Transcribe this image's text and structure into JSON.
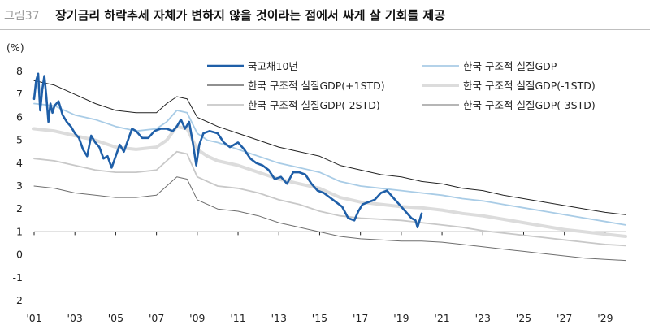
{
  "header": {
    "figure_label": "그림37",
    "title": "장기금리 하락추세 자체가 변하지 않을 것이라는 점에서 싸게 살 기회를 제공"
  },
  "chart_data": {
    "type": "line",
    "unit_label": "(%)",
    "ylim": [
      -2,
      8
    ],
    "yticks": [
      "8",
      "7",
      "6",
      "5",
      "4",
      "3",
      "2",
      "1",
      "0",
      "-1",
      "-2"
    ],
    "xlim": [
      2001,
      2030
    ],
    "xticks": [
      "'01",
      "'03",
      "'05",
      "'07",
      "'09",
      "'11",
      "'13",
      "'15",
      "'17",
      "'19",
      "'21",
      "'23",
      "'25",
      "'27",
      "'29"
    ],
    "grid": false,
    "legend_position": "top",
    "series": [
      {
        "name": "국고채10년",
        "color": "#1f5fa8",
        "style": "thick",
        "x": [
          2001.0,
          2001.1,
          2001.2,
          2001.3,
          2001.4,
          2001.5,
          2001.6,
          2001.7,
          2001.8,
          2001.9,
          2002.0,
          2002.2,
          2002.4,
          2002.6,
          2002.8,
          2003.0,
          2003.2,
          2003.4,
          2003.6,
          2003.8,
          2004.0,
          2004.2,
          2004.4,
          2004.6,
          2004.8,
          2005.0,
          2005.2,
          2005.4,
          2005.6,
          2005.8,
          2006.0,
          2006.3,
          2006.6,
          2006.9,
          2007.2,
          2007.5,
          2007.8,
          2008.0,
          2008.2,
          2008.4,
          2008.6,
          2008.8,
          2008.95,
          2009.1,
          2009.3,
          2009.6,
          2010.0,
          2010.3,
          2010.6,
          2011.0,
          2011.3,
          2011.6,
          2011.9,
          2012.2,
          2012.5,
          2012.8,
          2013.1,
          2013.4,
          2013.7,
          2014.0,
          2014.3,
          2014.6,
          2014.9,
          2015.2,
          2015.5,
          2015.8,
          2016.1,
          2016.4,
          2016.7,
          2016.9,
          2017.1,
          2017.4,
          2017.7,
          2018.0,
          2018.3,
          2018.6,
          2018.9,
          2019.2,
          2019.5,
          2019.7,
          2019.8,
          2019.9,
          2020.0
        ],
        "values": [
          6.8,
          7.6,
          7.9,
          6.3,
          7.2,
          7.8,
          6.9,
          5.8,
          6.6,
          6.2,
          6.5,
          6.7,
          6.1,
          5.8,
          5.6,
          5.3,
          5.1,
          4.6,
          4.3,
          5.2,
          4.9,
          4.7,
          4.2,
          4.3,
          3.8,
          4.3,
          4.8,
          4.5,
          5.0,
          5.5,
          5.4,
          5.1,
          5.1,
          5.4,
          5.5,
          5.5,
          5.4,
          5.6,
          5.9,
          5.5,
          5.8,
          4.8,
          3.9,
          4.8,
          5.3,
          5.4,
          5.3,
          4.9,
          4.7,
          4.9,
          4.6,
          4.2,
          4.0,
          3.9,
          3.7,
          3.3,
          3.4,
          3.1,
          3.6,
          3.6,
          3.5,
          3.1,
          2.8,
          2.7,
          2.5,
          2.3,
          2.1,
          1.6,
          1.5,
          1.9,
          2.2,
          2.3,
          2.4,
          2.7,
          2.8,
          2.5,
          2.2,
          1.9,
          1.6,
          1.5,
          1.2,
          1.5,
          1.8
        ]
      },
      {
        "name": "한국 구조적 실질GDP",
        "color": "#a9cce6",
        "style": "normal",
        "x": [
          2001,
          2002,
          2003,
          2004,
          2005,
          2006,
          2007,
          2007.5,
          2008,
          2008.5,
          2009,
          2009.5,
          2010,
          2011,
          2012,
          2013,
          2014,
          2015,
          2016,
          2017,
          2018,
          2019,
          2020,
          2021,
          2022,
          2023,
          2024,
          2025,
          2026,
          2027,
          2028,
          2029,
          2030
        ],
        "values": [
          6.6,
          6.5,
          6.1,
          5.9,
          5.6,
          5.4,
          5.5,
          5.8,
          6.3,
          6.2,
          5.3,
          5.0,
          4.9,
          4.6,
          4.3,
          4.0,
          3.8,
          3.6,
          3.2,
          3.0,
          2.9,
          2.8,
          2.7,
          2.6,
          2.45,
          2.35,
          2.2,
          2.05,
          1.9,
          1.75,
          1.6,
          1.45,
          1.3
        ]
      },
      {
        "name": "한국 구조적 실질GDP(+1STD)",
        "color": "#222222",
        "style": "thin",
        "x": [
          2001,
          2002,
          2003,
          2004,
          2005,
          2006,
          2007,
          2007.5,
          2008,
          2008.5,
          2009,
          2009.5,
          2010,
          2011,
          2012,
          2013,
          2014,
          2015,
          2016,
          2017,
          2018,
          2019,
          2020,
          2021,
          2022,
          2023,
          2024,
          2025,
          2026,
          2027,
          2028,
          2029,
          2030
        ],
        "values": [
          7.6,
          7.4,
          7.0,
          6.6,
          6.3,
          6.2,
          6.2,
          6.6,
          6.9,
          6.8,
          6.0,
          5.8,
          5.6,
          5.3,
          5.0,
          4.7,
          4.5,
          4.3,
          3.9,
          3.7,
          3.5,
          3.4,
          3.2,
          3.1,
          2.9,
          2.8,
          2.6,
          2.45,
          2.3,
          2.15,
          2.0,
          1.85,
          1.75
        ]
      },
      {
        "name": "한국 구조적 실질GDP(-1STD)",
        "color": "#dcdcdc",
        "style": "thick",
        "x": [
          2001,
          2002,
          2003,
          2004,
          2005,
          2006,
          2007,
          2007.5,
          2008,
          2008.5,
          2009,
          2009.5,
          2010,
          2011,
          2012,
          2013,
          2014,
          2015,
          2016,
          2017,
          2018,
          2019,
          2020,
          2021,
          2022,
          2023,
          2024,
          2025,
          2026,
          2027,
          2028,
          2029,
          2030
        ],
        "values": [
          5.5,
          5.4,
          5.2,
          5.0,
          4.7,
          4.6,
          4.7,
          5.0,
          5.6,
          5.5,
          4.6,
          4.3,
          4.1,
          3.9,
          3.6,
          3.3,
          3.1,
          2.9,
          2.5,
          2.3,
          2.2,
          2.1,
          2.05,
          1.95,
          1.8,
          1.7,
          1.55,
          1.4,
          1.25,
          1.1,
          1.0,
          0.9,
          0.8
        ]
      },
      {
        "name": "한국 구조적 실질GDP(-2STD)",
        "color": "#c8c8c8",
        "style": "normal",
        "x": [
          2001,
          2002,
          2003,
          2004,
          2005,
          2006,
          2007,
          2007.5,
          2008,
          2008.5,
          2009,
          2009.5,
          2010,
          2011,
          2012,
          2013,
          2014,
          2015,
          2016,
          2017,
          2018,
          2019,
          2020,
          2021,
          2022,
          2023,
          2024,
          2025,
          2026,
          2027,
          2028,
          2029,
          2030
        ],
        "values": [
          4.2,
          4.1,
          3.9,
          3.7,
          3.6,
          3.6,
          3.7,
          4.1,
          4.5,
          4.4,
          3.4,
          3.2,
          3.0,
          2.9,
          2.7,
          2.4,
          2.2,
          1.9,
          1.7,
          1.6,
          1.55,
          1.5,
          1.4,
          1.3,
          1.2,
          1.05,
          0.95,
          0.85,
          0.75,
          0.65,
          0.55,
          0.45,
          0.4
        ]
      },
      {
        "name": "한국 구조적 실질GDP(-3STD)",
        "color": "#6e6e6e",
        "style": "thin",
        "x": [
          2001,
          2002,
          2003,
          2004,
          2005,
          2006,
          2007,
          2007.5,
          2008,
          2008.5,
          2009,
          2009.5,
          2010,
          2011,
          2012,
          2013,
          2014,
          2015,
          2016,
          2017,
          2018,
          2019,
          2020,
          2021,
          2022,
          2023,
          2024,
          2025,
          2026,
          2027,
          2028,
          2029,
          2030
        ],
        "values": [
          3.0,
          2.9,
          2.7,
          2.6,
          2.5,
          2.5,
          2.6,
          3.0,
          3.4,
          3.3,
          2.4,
          2.2,
          2.0,
          1.9,
          1.7,
          1.4,
          1.2,
          1.0,
          0.8,
          0.7,
          0.65,
          0.6,
          0.6,
          0.55,
          0.45,
          0.35,
          0.25,
          0.15,
          0.05,
          -0.05,
          -0.15,
          -0.2,
          -0.25
        ]
      }
    ]
  }
}
